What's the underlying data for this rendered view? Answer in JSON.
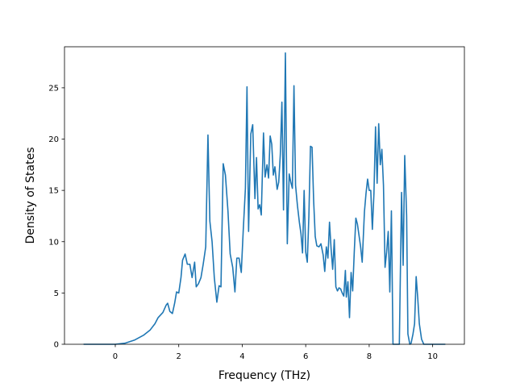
{
  "chart_data": {
    "type": "line",
    "title": "",
    "xlabel": "Frequency (THz)",
    "ylabel": "Density of States",
    "xlim": [
      -1.6,
      11.0
    ],
    "ylim": [
      0,
      29.0
    ],
    "xticks": [
      0,
      2,
      4,
      6,
      8,
      10
    ],
    "yticks": [
      0,
      5,
      10,
      15,
      20,
      25
    ],
    "grid": false,
    "legend": "none",
    "series": [
      {
        "color": "#1f77b4",
        "points": [
          [
            -1.0,
            0.0
          ],
          [
            -0.5,
            0.0
          ],
          [
            0.0,
            0.0
          ],
          [
            0.3,
            0.1
          ],
          [
            0.6,
            0.4
          ],
          [
            0.9,
            0.9
          ],
          [
            1.1,
            1.4
          ],
          [
            1.25,
            2.0
          ],
          [
            1.35,
            2.6
          ],
          [
            1.5,
            3.1
          ],
          [
            1.6,
            3.8
          ],
          [
            1.65,
            4.0
          ],
          [
            1.72,
            3.2
          ],
          [
            1.8,
            3.0
          ],
          [
            1.87,
            4.0
          ],
          [
            1.93,
            5.1
          ],
          [
            2.0,
            5.0
          ],
          [
            2.07,
            6.5
          ],
          [
            2.12,
            8.2
          ],
          [
            2.2,
            8.8
          ],
          [
            2.27,
            7.8
          ],
          [
            2.35,
            7.8
          ],
          [
            2.42,
            6.5
          ],
          [
            2.5,
            8.0
          ],
          [
            2.55,
            5.6
          ],
          [
            2.62,
            5.9
          ],
          [
            2.7,
            6.5
          ],
          [
            2.77,
            7.8
          ],
          [
            2.85,
            9.5
          ],
          [
            2.92,
            20.4
          ],
          [
            2.98,
            12.0
          ],
          [
            3.05,
            10.0
          ],
          [
            3.12,
            6.5
          ],
          [
            3.2,
            4.1
          ],
          [
            3.27,
            5.7
          ],
          [
            3.33,
            5.6
          ],
          [
            3.4,
            17.6
          ],
          [
            3.47,
            16.5
          ],
          [
            3.55,
            13.0
          ],
          [
            3.62,
            8.8
          ],
          [
            3.7,
            7.5
          ],
          [
            3.77,
            5.1
          ],
          [
            3.83,
            8.4
          ],
          [
            3.9,
            8.4
          ],
          [
            3.97,
            7.0
          ],
          [
            4.03,
            11.0
          ],
          [
            4.1,
            15.2
          ],
          [
            4.15,
            25.1
          ],
          [
            4.2,
            11.0
          ],
          [
            4.27,
            20.5
          ],
          [
            4.33,
            21.4
          ],
          [
            4.4,
            14.2
          ],
          [
            4.45,
            18.2
          ],
          [
            4.5,
            13.2
          ],
          [
            4.55,
            13.6
          ],
          [
            4.6,
            12.6
          ],
          [
            4.67,
            20.6
          ],
          [
            4.72,
            16.3
          ],
          [
            4.78,
            17.5
          ],
          [
            4.83,
            16.2
          ],
          [
            4.88,
            20.3
          ],
          [
            4.93,
            19.5
          ],
          [
            4.98,
            16.5
          ],
          [
            5.03,
            17.3
          ],
          [
            5.1,
            15.1
          ],
          [
            5.15,
            15.8
          ],
          [
            5.2,
            18.5
          ],
          [
            5.25,
            23.6
          ],
          [
            5.3,
            13.1
          ],
          [
            5.36,
            28.4
          ],
          [
            5.42,
            9.8
          ],
          [
            5.48,
            16.6
          ],
          [
            5.53,
            15.8
          ],
          [
            5.58,
            15.2
          ],
          [
            5.63,
            25.2
          ],
          [
            5.68,
            15.5
          ],
          [
            5.74,
            13.5
          ],
          [
            5.8,
            11.9
          ],
          [
            5.85,
            10.8
          ],
          [
            5.9,
            8.9
          ],
          [
            5.95,
            15.0
          ],
          [
            6.0,
            9.0
          ],
          [
            6.05,
            8.0
          ],
          [
            6.1,
            12.5
          ],
          [
            6.15,
            19.3
          ],
          [
            6.2,
            19.2
          ],
          [
            6.25,
            14.0
          ],
          [
            6.3,
            10.5
          ],
          [
            6.35,
            9.6
          ],
          [
            6.42,
            9.5
          ],
          [
            6.48,
            9.8
          ],
          [
            6.55,
            8.7
          ],
          [
            6.6,
            7.1
          ],
          [
            6.65,
            9.5
          ],
          [
            6.7,
            8.4
          ],
          [
            6.75,
            11.9
          ],
          [
            6.8,
            9.3
          ],
          [
            6.85,
            7.3
          ],
          [
            6.9,
            10.2
          ],
          [
            6.95,
            5.6
          ],
          [
            7.0,
            5.2
          ],
          [
            7.05,
            5.5
          ],
          [
            7.1,
            5.4
          ],
          [
            7.15,
            5.0
          ],
          [
            7.2,
            4.7
          ],
          [
            7.25,
            7.2
          ],
          [
            7.28,
            4.6
          ],
          [
            7.33,
            6.1
          ],
          [
            7.38,
            2.6
          ],
          [
            7.43,
            7.0
          ],
          [
            7.48,
            5.2
          ],
          [
            7.53,
            9.0
          ],
          [
            7.58,
            12.3
          ],
          [
            7.63,
            11.7
          ],
          [
            7.68,
            10.6
          ],
          [
            7.73,
            9.5
          ],
          [
            7.78,
            8.0
          ],
          [
            7.85,
            12.9
          ],
          [
            7.9,
            14.7
          ],
          [
            7.95,
            16.1
          ],
          [
            8.0,
            15.0
          ],
          [
            8.05,
            15.0
          ],
          [
            8.1,
            11.2
          ],
          [
            8.15,
            14.7
          ],
          [
            8.2,
            21.2
          ],
          [
            8.25,
            15.7
          ],
          [
            8.3,
            21.5
          ],
          [
            8.35,
            17.5
          ],
          [
            8.4,
            19.0
          ],
          [
            8.45,
            15.5
          ],
          [
            8.5,
            7.5
          ],
          [
            8.55,
            9.0
          ],
          [
            8.6,
            11.0
          ],
          [
            8.65,
            5.1
          ],
          [
            8.7,
            13.0
          ],
          [
            8.75,
            0.0
          ],
          [
            8.9,
            0.0
          ],
          [
            8.95,
            0.0
          ],
          [
            9.02,
            14.8
          ],
          [
            9.07,
            7.7
          ],
          [
            9.12,
            18.4
          ],
          [
            9.18,
            12.5
          ],
          [
            9.22,
            1.0
          ],
          [
            9.28,
            0.0
          ],
          [
            9.32,
            0.1
          ],
          [
            9.38,
            1.0
          ],
          [
            9.43,
            2.0
          ],
          [
            9.48,
            6.6
          ],
          [
            9.53,
            4.5
          ],
          [
            9.58,
            2.0
          ],
          [
            9.65,
            0.5
          ],
          [
            9.72,
            0.0
          ],
          [
            10.0,
            0.0
          ],
          [
            10.4,
            0.0
          ]
        ]
      }
    ]
  }
}
